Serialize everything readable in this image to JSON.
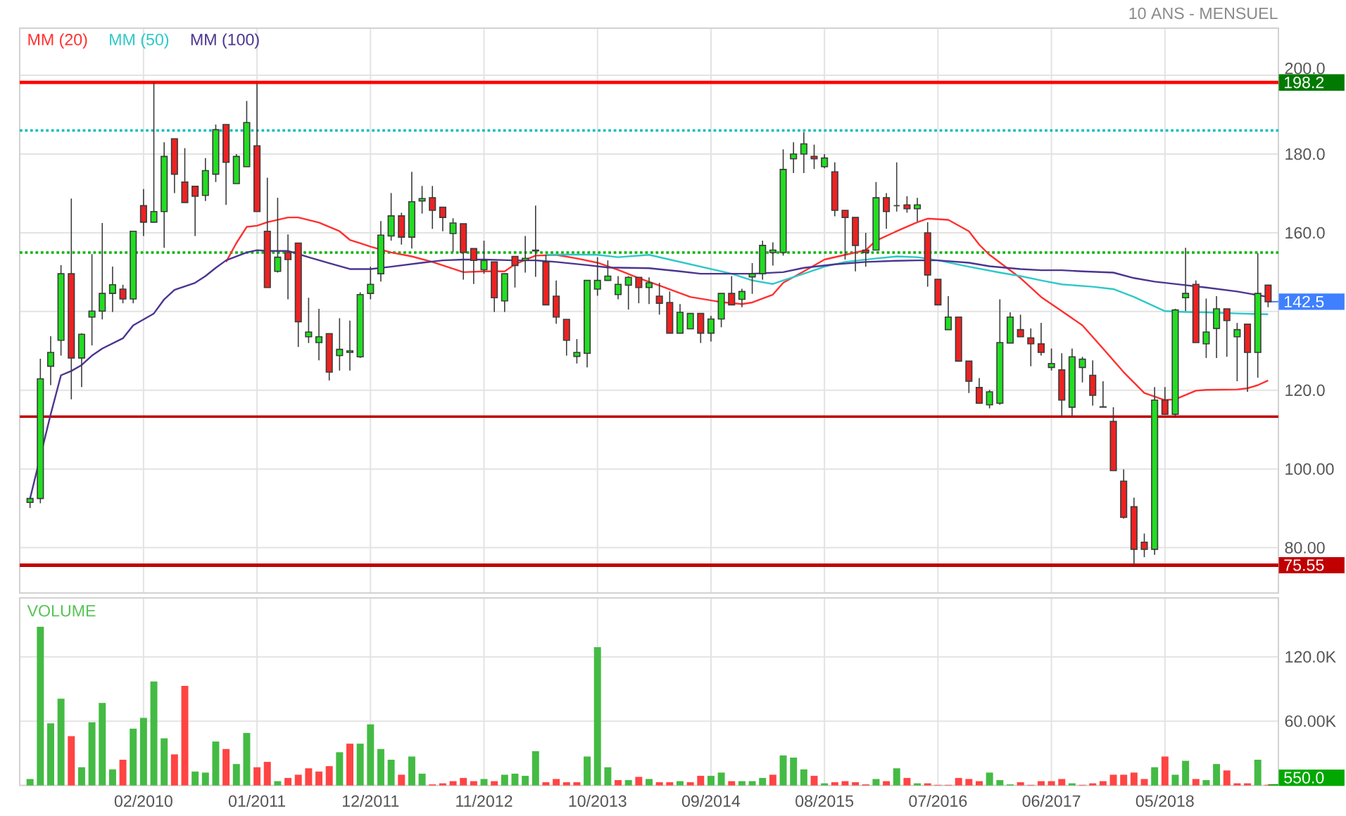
{
  "chart_data": [
    {
      "type": "candlestick",
      "subtitle": "10 ANS - MENSUEL",
      "x": [
        "2009-03",
        "2009-04",
        "2009-05",
        "2009-06",
        "2009-07",
        "2009-08",
        "2009-09",
        "2009-10",
        "2009-11",
        "2009-12",
        "2010-01",
        "2010-02",
        "2010-03",
        "2010-04",
        "2010-05",
        "2010-06",
        "2010-07",
        "2010-08",
        "2010-09",
        "2010-10",
        "2010-11",
        "2010-12",
        "2011-01",
        "2011-02",
        "2011-03",
        "2011-04",
        "2011-05",
        "2011-06",
        "2011-07",
        "2011-08",
        "2011-09",
        "2011-10",
        "2011-11",
        "2011-12",
        "2012-01",
        "2012-02",
        "2012-03",
        "2012-04",
        "2012-05",
        "2012-06",
        "2012-07",
        "2012-08",
        "2012-09",
        "2012-10",
        "2012-11",
        "2012-12",
        "2013-01",
        "2013-02",
        "2013-03",
        "2013-04",
        "2013-05",
        "2013-06",
        "2013-07",
        "2013-08",
        "2013-09",
        "2013-10",
        "2013-11",
        "2013-12",
        "2014-01",
        "2014-02",
        "2014-03",
        "2014-04",
        "2014-05",
        "2014-06",
        "2014-07",
        "2014-08",
        "2014-09",
        "2014-10",
        "2014-11",
        "2014-12",
        "2015-01",
        "2015-02",
        "2015-03",
        "2015-04",
        "2015-05",
        "2015-06",
        "2015-07",
        "2015-08",
        "2015-09",
        "2015-10",
        "2015-11",
        "2015-12",
        "2016-01",
        "2016-02",
        "2016-03",
        "2016-04",
        "2016-05",
        "2016-06",
        "2016-07",
        "2016-08",
        "2016-09",
        "2016-10",
        "2016-11",
        "2016-12",
        "2017-01",
        "2017-02",
        "2017-03",
        "2017-04",
        "2017-05",
        "2017-06",
        "2017-07",
        "2017-08",
        "2017-09",
        "2017-10",
        "2017-11",
        "2017-12",
        "2018-01",
        "2018-02",
        "2018-03",
        "2018-04",
        "2018-05",
        "2018-06",
        "2018-07",
        "2018-08",
        "2018-09",
        "2018-10",
        "2018-11",
        "2018-12",
        "2019-01",
        "2019-02",
        "2019-03"
      ],
      "ohlc": [
        [
          91.5,
          92.6,
          90.1,
          92.5
        ],
        [
          92.5,
          128,
          91.3,
          122.9
        ],
        [
          126.1,
          133.7,
          121.3,
          129.6
        ],
        [
          132.7,
          151.8,
          128.8,
          149.6
        ],
        [
          149.6,
          168.7,
          117.7,
          128.2
        ],
        [
          128.2,
          134.5,
          120.8,
          134.2
        ],
        [
          138.6,
          154.6,
          131.4,
          140.1
        ],
        [
          140.1,
          162.5,
          138,
          144.6
        ],
        [
          144.6,
          151.4,
          139.9,
          146.8
        ],
        [
          145.7,
          146.8,
          142.1,
          143.2
        ],
        [
          143.2,
          160.4,
          142.1,
          160.4
        ],
        [
          166.9,
          171.1,
          159.2,
          162.7
        ],
        [
          162.7,
          198.2,
          162.7,
          165.4
        ],
        [
          165.4,
          183,
          156.2,
          179.4
        ],
        [
          183.9,
          183.9,
          170.1,
          174.9
        ],
        [
          172.9,
          181.5,
          167.7,
          167.7
        ],
        [
          171.8,
          171.8,
          159.2,
          169.3
        ],
        [
          169.5,
          179,
          168.1,
          175.8
        ],
        [
          174.9,
          187.5,
          172.9,
          186.2
        ],
        [
          187.5,
          187.5,
          167.1,
          177.9
        ],
        [
          172.5,
          180,
          172.5,
          179.4
        ],
        [
          176.8,
          193.5,
          176.8,
          188
        ],
        [
          182.1,
          198,
          165.4,
          165.4
        ],
        [
          160.4,
          174,
          146.1,
          146.1
        ],
        [
          150.2,
          168.9,
          149.9,
          153.8
        ],
        [
          155,
          159.6,
          143.1,
          153.2
        ],
        [
          157.4,
          157.4,
          131,
          137.4
        ],
        [
          133.6,
          143.5,
          132,
          134.8
        ],
        [
          132.1,
          140.7,
          127.6,
          133.6
        ],
        [
          134.4,
          134.4,
          122.5,
          124.6
        ],
        [
          128.8,
          138.3,
          125,
          130.4
        ],
        [
          129.6,
          137.7,
          125,
          130
        ],
        [
          128.5,
          144.9,
          128.2,
          144.3
        ],
        [
          144.6,
          151.4,
          143.1,
          146.9
        ],
        [
          149.6,
          163,
          147.6,
          159.4
        ],
        [
          159.2,
          170.1,
          158,
          164.3
        ],
        [
          164.3,
          165.1,
          157,
          158.9
        ],
        [
          158.9,
          175.5,
          156,
          167.9
        ],
        [
          168.1,
          171.9,
          164.9,
          168.7
        ],
        [
          168.9,
          171.9,
          161,
          165.7
        ],
        [
          166.5,
          166.5,
          160.4,
          163.9
        ],
        [
          159.8,
          163.7,
          155.2,
          162.5
        ],
        [
          162.3,
          162.3,
          148.1,
          155
        ],
        [
          156,
          156,
          147,
          153
        ],
        [
          150.6,
          158,
          149.6,
          153
        ],
        [
          152.6,
          152.6,
          139.9,
          143.5
        ],
        [
          142.7,
          149.6,
          139.9,
          149.6
        ],
        [
          154,
          154,
          146.1,
          151.7
        ],
        [
          153,
          159.2,
          149.9,
          153.5
        ],
        [
          155.4,
          166.9,
          148.8,
          155.6
        ],
        [
          152.6,
          154.4,
          141.7,
          141.7
        ],
        [
          143.9,
          147.9,
          136.9,
          138.6
        ],
        [
          138,
          138,
          128.8,
          132.7
        ],
        [
          128.6,
          133,
          126.8,
          129.6
        ],
        [
          129.4,
          147.9,
          125.8,
          147.9
        ],
        [
          145.7,
          153.8,
          144,
          147.9
        ],
        [
          147.9,
          153,
          147.9,
          149
        ],
        [
          144.3,
          149,
          143.1,
          146.9
        ],
        [
          146.7,
          149,
          140.5,
          148.7
        ],
        [
          148.7,
          148.7,
          142.1,
          146.1
        ],
        [
          146.1,
          148.7,
          141.9,
          147.3
        ],
        [
          143.9,
          147.3,
          139.2,
          142.1
        ],
        [
          142.3,
          145.1,
          134.5,
          134.5
        ],
        [
          134.5,
          141.9,
          134.5,
          139.8
        ],
        [
          135.6,
          139.5,
          135.6,
          139.5
        ],
        [
          139.5,
          139.5,
          132,
          134.5
        ],
        [
          134.5,
          138.9,
          132.4,
          138.1
        ],
        [
          138.1,
          144.6,
          136,
          144.6
        ],
        [
          144.6,
          149,
          141.7,
          141.7
        ],
        [
          143.1,
          145.8,
          141.1,
          145.1
        ],
        [
          148.8,
          152.3,
          144.5,
          149.6
        ],
        [
          149.6,
          158,
          148.1,
          156.8
        ],
        [
          155,
          157.6,
          151.7,
          155.6
        ],
        [
          155,
          181.2,
          154.2,
          176.1
        ],
        [
          178.8,
          183,
          175.2,
          180
        ],
        [
          180,
          185.6,
          175.2,
          182.6
        ],
        [
          179.4,
          182.4,
          176.2,
          178.8
        ],
        [
          176.8,
          180,
          176.4,
          179
        ],
        [
          175.5,
          177.9,
          164.2,
          165.7
        ],
        [
          165.7,
          165.7,
          153.2,
          163.9
        ],
        [
          163.9,
          163.9,
          150.2,
          156.8
        ],
        [
          155.6,
          160,
          151.4,
          155
        ],
        [
          155.6,
          172.9,
          155.6,
          168.9
        ],
        [
          168.9,
          170.1,
          161,
          165.4
        ],
        [
          166.9,
          177.9,
          165.4,
          166.9
        ],
        [
          167.1,
          169.3,
          165.1,
          166.1
        ],
        [
          166.1,
          168.9,
          162.9,
          167.1
        ],
        [
          160,
          162.7,
          146.3,
          149.3
        ],
        [
          148.2,
          148.2,
          141.7,
          141.7
        ],
        [
          135.4,
          143.9,
          135.4,
          138.6
        ],
        [
          138.6,
          138.6,
          127.4,
          127.4
        ],
        [
          127.4,
          127.4,
          119.3,
          122.3
        ],
        [
          120.7,
          123.1,
          116.7,
          116.7
        ],
        [
          116.3,
          120.1,
          115.4,
          119.6
        ],
        [
          116.7,
          143.1,
          116.3,
          132.1
        ],
        [
          132,
          139.8,
          132,
          138.6
        ],
        [
          135.4,
          139.2,
          133.6,
          133.6
        ],
        [
          133.3,
          135.7,
          126.1,
          131.8
        ],
        [
          131.8,
          137.1,
          128.8,
          129.6
        ],
        [
          125.8,
          130.6,
          125,
          126.8
        ],
        [
          125.2,
          129.4,
          113.3,
          117.5
        ],
        [
          115.7,
          130.6,
          113.3,
          128.5
        ],
        [
          125.8,
          128.5,
          122,
          127.9
        ],
        [
          123.8,
          127.6,
          116.1,
          118.7
        ],
        [
          115.8,
          122.3,
          115.7,
          115.7
        ],
        [
          112.1,
          115.7,
          99.6,
          99.6
        ],
        [
          96.9,
          99.9,
          87.4,
          87.7
        ],
        [
          90.4,
          92.7,
          75.55,
          79.6
        ],
        [
          81.4,
          83.6,
          77.6,
          79.6
        ],
        [
          79.6,
          120.8,
          78.2,
          117.5
        ],
        [
          117.5,
          120.8,
          113.9,
          113.9
        ],
        [
          113.9,
          140.7,
          113.3,
          140.4
        ],
        [
          143.5,
          156.2,
          140.1,
          144.6
        ],
        [
          146.9,
          147.9,
          132.1,
          132.1
        ],
        [
          131.8,
          143.3,
          128.2,
          134.8
        ],
        [
          135.7,
          143.9,
          128.2,
          140.7
        ],
        [
          140.7,
          140.7,
          128.5,
          137.7
        ],
        [
          133.6,
          137.1,
          122.3,
          135.4
        ],
        [
          136.8,
          136.8,
          119.6,
          129.6
        ],
        [
          129.6,
          154.8,
          123.2,
          144.6
        ],
        [
          146.7,
          146.7,
          141.1,
          142.5
        ]
      ],
      "colors": [
        "#22dd22",
        "#22dd22",
        "#22dd22",
        "#22dd22",
        "#ee2222",
        "#22dd22",
        "#22dd22",
        "#22dd22",
        "#22dd22",
        "#ee2222",
        "#22dd22",
        "#ee2222",
        "#22dd22",
        "#22dd22",
        "#ee2222",
        "#ee2222",
        "#ee2222",
        "#22dd22",
        "#22dd22",
        "#ee2222",
        "#22dd22",
        "#22dd22",
        "#ee2222",
        "#ee2222",
        "#22dd22",
        "#ee2222",
        "#ee2222",
        "#22dd22",
        "#22dd22",
        "#ee2222",
        "#22dd22",
        "#22dd22",
        "#22dd22",
        "#22dd22",
        "#22dd22",
        "#22dd22",
        "#ee2222",
        "#22dd22",
        "#22dd22",
        "#ee2222",
        "#ee2222",
        "#22dd22",
        "#ee2222",
        "#ee2222",
        "#22dd22",
        "#ee2222",
        "#22dd22",
        "#ee2222",
        "#22dd22",
        "#22dd22",
        "#ee2222",
        "#ee2222",
        "#ee2222",
        "#22dd22",
        "#22dd22",
        "#22dd22",
        "#22dd22",
        "#22dd22",
        "#22dd22",
        "#ee2222",
        "#22dd22",
        "#ee2222",
        "#ee2222",
        "#22dd22",
        "#22dd22",
        "#ee2222",
        "#22dd22",
        "#22dd22",
        "#ee2222",
        "#22dd22",
        "#22dd22",
        "#22dd22",
        "#22dd22",
        "#22dd22",
        "#22dd22",
        "#22dd22",
        "#ee2222",
        "#22dd22",
        "#ee2222",
        "#ee2222",
        "#ee2222",
        "#ee2222",
        "#22dd22",
        "#ee2222",
        "#444444",
        "#ee2222",
        "#22dd22",
        "#ee2222",
        "#ee2222",
        "#22dd22",
        "#ee2222",
        "#ee2222",
        "#ee2222",
        "#22dd22",
        "#22dd22",
        "#22dd22",
        "#ee2222",
        "#ee2222",
        "#ee2222",
        "#22dd22",
        "#ee2222",
        "#22dd22",
        "#22dd22",
        "#ee2222",
        "#ee2222",
        "#ee2222",
        "#ee2222",
        "#ee2222",
        "#ee2222",
        "#22dd22",
        "#ee2222",
        "#22dd22",
        "#22dd22",
        "#ee2222",
        "#22dd22",
        "#22dd22",
        "#ee2222",
        "#22dd22",
        "#ee2222",
        "#22dd22",
        "#ee2222"
      ],
      "series": [
        {
          "name": "MM (20)",
          "type": "line",
          "color": "#ff3030",
          "x": [
            "2010-10",
            "2010-11",
            "2010-12",
            "2011-01",
            "2011-02",
            "2011-04",
            "2011-05",
            "2011-07",
            "2011-09",
            "2011-10",
            "2011-12",
            "2012-02",
            "2012-04",
            "2012-06",
            "2012-09",
            "2012-11",
            "2013-01",
            "2013-02",
            "2013-04",
            "2013-06",
            "2013-08",
            "2013-10",
            "2013-12",
            "2014-02",
            "2014-04",
            "2014-07",
            "2014-10",
            "2014-12",
            "2015-01",
            "2015-03",
            "2015-04",
            "2015-06",
            "2015-08",
            "2015-10",
            "2015-12",
            "2016-01",
            "2016-03",
            "2016-05",
            "2016-06",
            "2016-08",
            "2016-10",
            "2016-11",
            "2016-12",
            "2017-03",
            "2017-05",
            "2017-07",
            "2017-09",
            "2017-11",
            "2018-01",
            "2018-03",
            "2018-05",
            "2018-06",
            "2018-08",
            "2018-09",
            "2018-12",
            "2019-01",
            "2019-02",
            "2019-03"
          ],
          "values": [
            152.6,
            157.4,
            161.5,
            161.8,
            162.7,
            163.9,
            163.9,
            162.6,
            160.4,
            158.2,
            156.5,
            155,
            154,
            152.6,
            150,
            150.2,
            150.2,
            152,
            154.2,
            154.4,
            153.5,
            152.4,
            150.6,
            148.5,
            146.6,
            143.7,
            142.4,
            141.9,
            142.3,
            144.3,
            147.3,
            150.2,
            153.2,
            154.4,
            155.6,
            158,
            160.4,
            162.7,
            163.6,
            163.3,
            160.4,
            157,
            154.4,
            148.5,
            143.7,
            140.1,
            136.5,
            130.6,
            124.6,
            119.3,
            117.5,
            117.7,
            119.9,
            120.1,
            120.2,
            120.5,
            121.3,
            122.5
          ]
        },
        {
          "name": "MM (50)",
          "type": "line",
          "color": "#2ec8c8",
          "x": [
            "2013-05",
            "2013-07",
            "2013-10",
            "2013-12",
            "2014-03",
            "2014-05",
            "2014-08",
            "2014-11",
            "2015-01",
            "2015-03",
            "2015-04",
            "2015-06",
            "2015-08",
            "2015-10",
            "2016-01",
            "2016-03",
            "2016-05",
            "2016-07",
            "2016-10",
            "2017-01",
            "2017-03",
            "2017-05",
            "2017-07",
            "2017-10",
            "2017-12",
            "2018-02",
            "2018-04",
            "2018-05",
            "2018-07",
            "2018-09",
            "2018-12",
            "2019-03"
          ],
          "values": [
            154.4,
            154.5,
            154.4,
            153.8,
            154.4,
            153.2,
            151.4,
            149.6,
            147.9,
            147,
            147.9,
            149.6,
            151.4,
            152.6,
            153.5,
            154,
            153.8,
            153,
            151.4,
            149.9,
            149,
            147.9,
            146.9,
            146.3,
            145.7,
            143.7,
            141.3,
            140.1,
            139.9,
            139.8,
            139.5,
            139.3
          ]
        },
        {
          "name": "MM (100)",
          "type": "line",
          "color": "#4b3590",
          "x": [
            "2009-03",
            "2009-05",
            "2009-06",
            "2009-07",
            "2009-08",
            "2009-09",
            "2009-10",
            "2009-12",
            "2010-01",
            "2010-03",
            "2010-04",
            "2010-05",
            "2010-07",
            "2010-08",
            "2010-09",
            "2010-10",
            "2010-12",
            "2011-01",
            "2011-02",
            "2011-04",
            "2011-06",
            "2011-08",
            "2011-10",
            "2011-12",
            "2012-02",
            "2012-05",
            "2012-07",
            "2012-09",
            "2012-11",
            "2013-02",
            "2013-04",
            "2013-06",
            "2013-09",
            "2013-11",
            "2014-01",
            "2014-03",
            "2014-06",
            "2014-08",
            "2014-11",
            "2015-01",
            "2015-04",
            "2015-06",
            "2015-09",
            "2015-12",
            "2016-03",
            "2016-05",
            "2016-07",
            "2016-10",
            "2016-12",
            "2017-03",
            "2017-05",
            "2017-07",
            "2017-09",
            "2017-12",
            "2018-02",
            "2018-04",
            "2018-07",
            "2018-09",
            "2018-12",
            "2019-03"
          ],
          "values": [
            92.5,
            113.9,
            123.8,
            124.9,
            126.4,
            128.8,
            130.6,
            133.2,
            136.5,
            139.5,
            143.1,
            145.5,
            147.3,
            149,
            151.1,
            153,
            155,
            155.6,
            155.4,
            155.4,
            153.8,
            152.3,
            150.8,
            150.8,
            151.4,
            152.4,
            153,
            153.2,
            153.2,
            153,
            153,
            152.6,
            151.8,
            151.2,
            151.1,
            151,
            150.2,
            149.6,
            149.6,
            149.6,
            150,
            151.1,
            152,
            152.6,
            152.9,
            153,
            153,
            152.4,
            151.5,
            150.8,
            150.5,
            150.5,
            150.2,
            149.9,
            148.5,
            147.6,
            146.7,
            146.1,
            145.1,
            143.7
          ]
        }
      ],
      "xlim": [
        "2009-02",
        "2019-04"
      ],
      "xticks": [
        {
          "value": "2010-02",
          "label": null
        },
        {
          "value": "2011-01",
          "label": null
        },
        {
          "value": "2011-12",
          "label": null
        },
        {
          "value": "2012-11",
          "label": null
        },
        {
          "value": "2013-10",
          "label": null
        },
        {
          "value": "2014-09",
          "label": null
        },
        {
          "value": "2015-08",
          "label": null
        },
        {
          "value": "2016-07",
          "label": null
        },
        {
          "value": "2017-06",
          "label": null
        },
        {
          "value": "2018-05",
          "label": null
        }
      ],
      "ylim": [
        68.5,
        212
      ],
      "yticks": [
        {
          "value": 80,
          "label": "80.00"
        },
        {
          "value": 100,
          "label": "100.00"
        },
        {
          "value": 120,
          "label": "120.0"
        },
        {
          "value": 140,
          "label": null
        },
        {
          "value": 160,
          "label": "160.0"
        },
        {
          "value": 180,
          "label": "180.0"
        },
        {
          "value": 200,
          "label": "200.0"
        }
      ],
      "tick_labels": "y",
      "grid": true,
      "legend": "top left",
      "ref_lines": [
        {
          "axis": "y",
          "value": 198.2,
          "label": "198.2",
          "color": "#ff0000"
        },
        {
          "axis": "y",
          "value": 186,
          "color": "#00bfbf",
          "line_style": "dotted"
        },
        {
          "axis": "y",
          "value": 155,
          "color": "#00b400",
          "line_style": "dotted"
        },
        {
          "axis": "y",
          "value": 113.3,
          "color": "#c00000"
        },
        {
          "axis": "y",
          "value": 75.55,
          "label": "75.55",
          "color": "#c00000"
        }
      ],
      "annotations": [
        {
          "text": "142.5",
          "x": "2019-03",
          "y": 142.5
        }
      ]
    },
    {
      "type": "bar",
      "title": "VOLUME",
      "x": [
        "2009-03",
        "2009-04",
        "2009-05",
        "2009-06",
        "2009-07",
        "2009-08",
        "2009-09",
        "2009-10",
        "2009-11",
        "2009-12",
        "2010-01",
        "2010-02",
        "2010-03",
        "2010-04",
        "2010-05",
        "2010-06",
        "2010-07",
        "2010-08",
        "2010-09",
        "2010-10",
        "2010-11",
        "2010-12",
        "2011-01",
        "2011-02",
        "2011-03",
        "2011-04",
        "2011-05",
        "2011-06",
        "2011-07",
        "2011-08",
        "2011-09",
        "2011-10",
        "2011-11",
        "2011-12",
        "2012-01",
        "2012-02",
        "2012-03",
        "2012-04",
        "2012-05",
        "2012-06",
        "2012-07",
        "2012-08",
        "2012-09",
        "2012-10",
        "2012-11",
        "2012-12",
        "2013-01",
        "2013-02",
        "2013-03",
        "2013-04",
        "2013-05",
        "2013-06",
        "2013-07",
        "2013-08",
        "2013-09",
        "2013-10",
        "2013-11",
        "2013-12",
        "2014-01",
        "2014-02",
        "2014-03",
        "2014-04",
        "2014-05",
        "2014-06",
        "2014-07",
        "2014-08",
        "2014-09",
        "2014-10",
        "2014-11",
        "2014-12",
        "2015-01",
        "2015-02",
        "2015-03",
        "2015-04",
        "2015-05",
        "2015-06",
        "2015-07",
        "2015-08",
        "2015-09",
        "2015-10",
        "2015-11",
        "2015-12",
        "2016-01",
        "2016-02",
        "2016-03",
        "2016-04",
        "2016-05",
        "2016-06",
        "2016-07",
        "2016-08",
        "2016-09",
        "2016-10",
        "2016-11",
        "2016-12",
        "2017-01",
        "2017-02",
        "2017-03",
        "2017-04",
        "2017-05",
        "2017-06",
        "2017-07",
        "2017-08",
        "2017-09",
        "2017-10",
        "2017-11",
        "2017-12",
        "2018-01",
        "2018-02",
        "2018-03",
        "2018-04",
        "2018-05",
        "2018-06",
        "2018-07",
        "2018-08",
        "2018-09",
        "2018-10",
        "2018-11",
        "2018-12",
        "2019-01",
        "2019-02",
        "2019-03"
      ],
      "values": [
        6000,
        148000,
        58000,
        81000,
        46000,
        17000,
        59000,
        77000,
        15000,
        24000,
        53000,
        63000,
        97000,
        44000,
        29000,
        93000,
        13000,
        12000,
        41000,
        34000,
        20000,
        49000,
        17000,
        22000,
        4000,
        7000,
        10000,
        16000,
        13000,
        18000,
        31000,
        39000,
        39000,
        57000,
        34000,
        24000,
        10000,
        27000,
        11000,
        1000,
        2000,
        4000,
        7000,
        4000,
        6000,
        4000,
        10000,
        11000,
        9000,
        32000,
        3000,
        6000,
        3000,
        3000,
        27000,
        129000,
        17000,
        5000,
        5000,
        8000,
        6000,
        3000,
        3000,
        4000,
        3000,
        9000,
        9000,
        12000,
        4000,
        4000,
        4000,
        7000,
        10000,
        28000,
        26000,
        15000,
        9000,
        2000,
        3000,
        4000,
        3000,
        1000,
        6000,
        4000,
        16000,
        7000,
        2000,
        2000,
        500,
        500,
        7000,
        6000,
        4000,
        12000,
        5000,
        1000,
        3000,
        500,
        4000,
        4000,
        6000,
        2000,
        500,
        2000,
        4000,
        10000,
        10000,
        12000,
        6000,
        17000,
        27000,
        10000,
        23000,
        6000,
        5000,
        20000,
        14000,
        2000,
        2000,
        24000,
        550
      ],
      "colors": [
        "#44bb44",
        "#44bb44",
        "#44bb44",
        "#44bb44",
        "#ff4444",
        "#44bb44",
        "#44bb44",
        "#44bb44",
        "#44bb44",
        "#ff4444",
        "#44bb44",
        "#44bb44",
        "#44bb44",
        "#44bb44",
        "#ff4444",
        "#ff4444",
        "#44bb44",
        "#44bb44",
        "#44bb44",
        "#ff4444",
        "#44bb44",
        "#44bb44",
        "#ff4444",
        "#ff4444",
        "#44bb44",
        "#ff4444",
        "#ff4444",
        "#ff4444",
        "#ff4444",
        "#ff4444",
        "#44bb44",
        "#ff4444",
        "#44bb44",
        "#44bb44",
        "#44bb44",
        "#44bb44",
        "#ff4444",
        "#44bb44",
        "#44bb44",
        "#ff4444",
        "#ff4444",
        "#ff4444",
        "#ff4444",
        "#ff4444",
        "#44bb44",
        "#ff4444",
        "#44bb44",
        "#44bb44",
        "#44bb44",
        "#44bb44",
        "#ff4444",
        "#ff4444",
        "#ff4444",
        "#ff4444",
        "#44bb44",
        "#44bb44",
        "#44bb44",
        "#ff4444",
        "#44bb44",
        "#ff4444",
        "#44bb44",
        "#ff4444",
        "#ff4444",
        "#44bb44",
        "#ff4444",
        "#ff4444",
        "#44bb44",
        "#44bb44",
        "#ff4444",
        "#44bb44",
        "#44bb44",
        "#44bb44",
        "#ff4444",
        "#44bb44",
        "#44bb44",
        "#44bb44",
        "#ff4444",
        "#44bb44",
        "#ff4444",
        "#ff4444",
        "#ff4444",
        "#ff4444",
        "#44bb44",
        "#ff4444",
        "#44bb44",
        "#ff4444",
        "#44bb44",
        "#ff4444",
        "#ff4444",
        "#ff4444",
        "#ff4444",
        "#ff4444",
        "#ff4444",
        "#44bb44",
        "#44bb44",
        "#44bb44",
        "#ff4444",
        "#ff4444",
        "#ff4444",
        "#ff4444",
        "#ff4444",
        "#44bb44",
        "#ff4444",
        "#ff4444",
        "#ff4444",
        "#ff4444",
        "#ff4444",
        "#ff4444",
        "#ff4444",
        "#44bb44",
        "#ff4444",
        "#44bb44",
        "#44bb44",
        "#ff4444",
        "#44bb44",
        "#44bb44",
        "#ff4444",
        "#ff4444",
        "#ff4444",
        "#44bb44",
        "#ff4444"
      ],
      "xlim": [
        "2009-02",
        "2019-04"
      ],
      "xticks": [
        {
          "value": "2010-02",
          "label": "02/2010"
        },
        {
          "value": "2011-01",
          "label": "01/2011"
        },
        {
          "value": "2011-12",
          "label": "12/2011"
        },
        {
          "value": "2012-11",
          "label": "11/2012"
        },
        {
          "value": "2013-10",
          "label": "10/2013"
        },
        {
          "value": "2014-09",
          "label": "09/2014"
        },
        {
          "value": "2015-08",
          "label": "08/2015"
        },
        {
          "value": "2016-07",
          "label": "07/2016"
        },
        {
          "value": "2017-06",
          "label": "06/2017"
        },
        {
          "value": "2018-05",
          "label": "05/2018"
        }
      ],
      "ylim": [
        0,
        175000
      ],
      "yticks": [
        {
          "value": 60000,
          "label": "60.00K"
        },
        {
          "value": 120000,
          "label": "120.0K"
        }
      ],
      "grid": true,
      "annotations": [
        {
          "text": "550.0",
          "x": "2019-03",
          "y": 550
        }
      ]
    }
  ]
}
